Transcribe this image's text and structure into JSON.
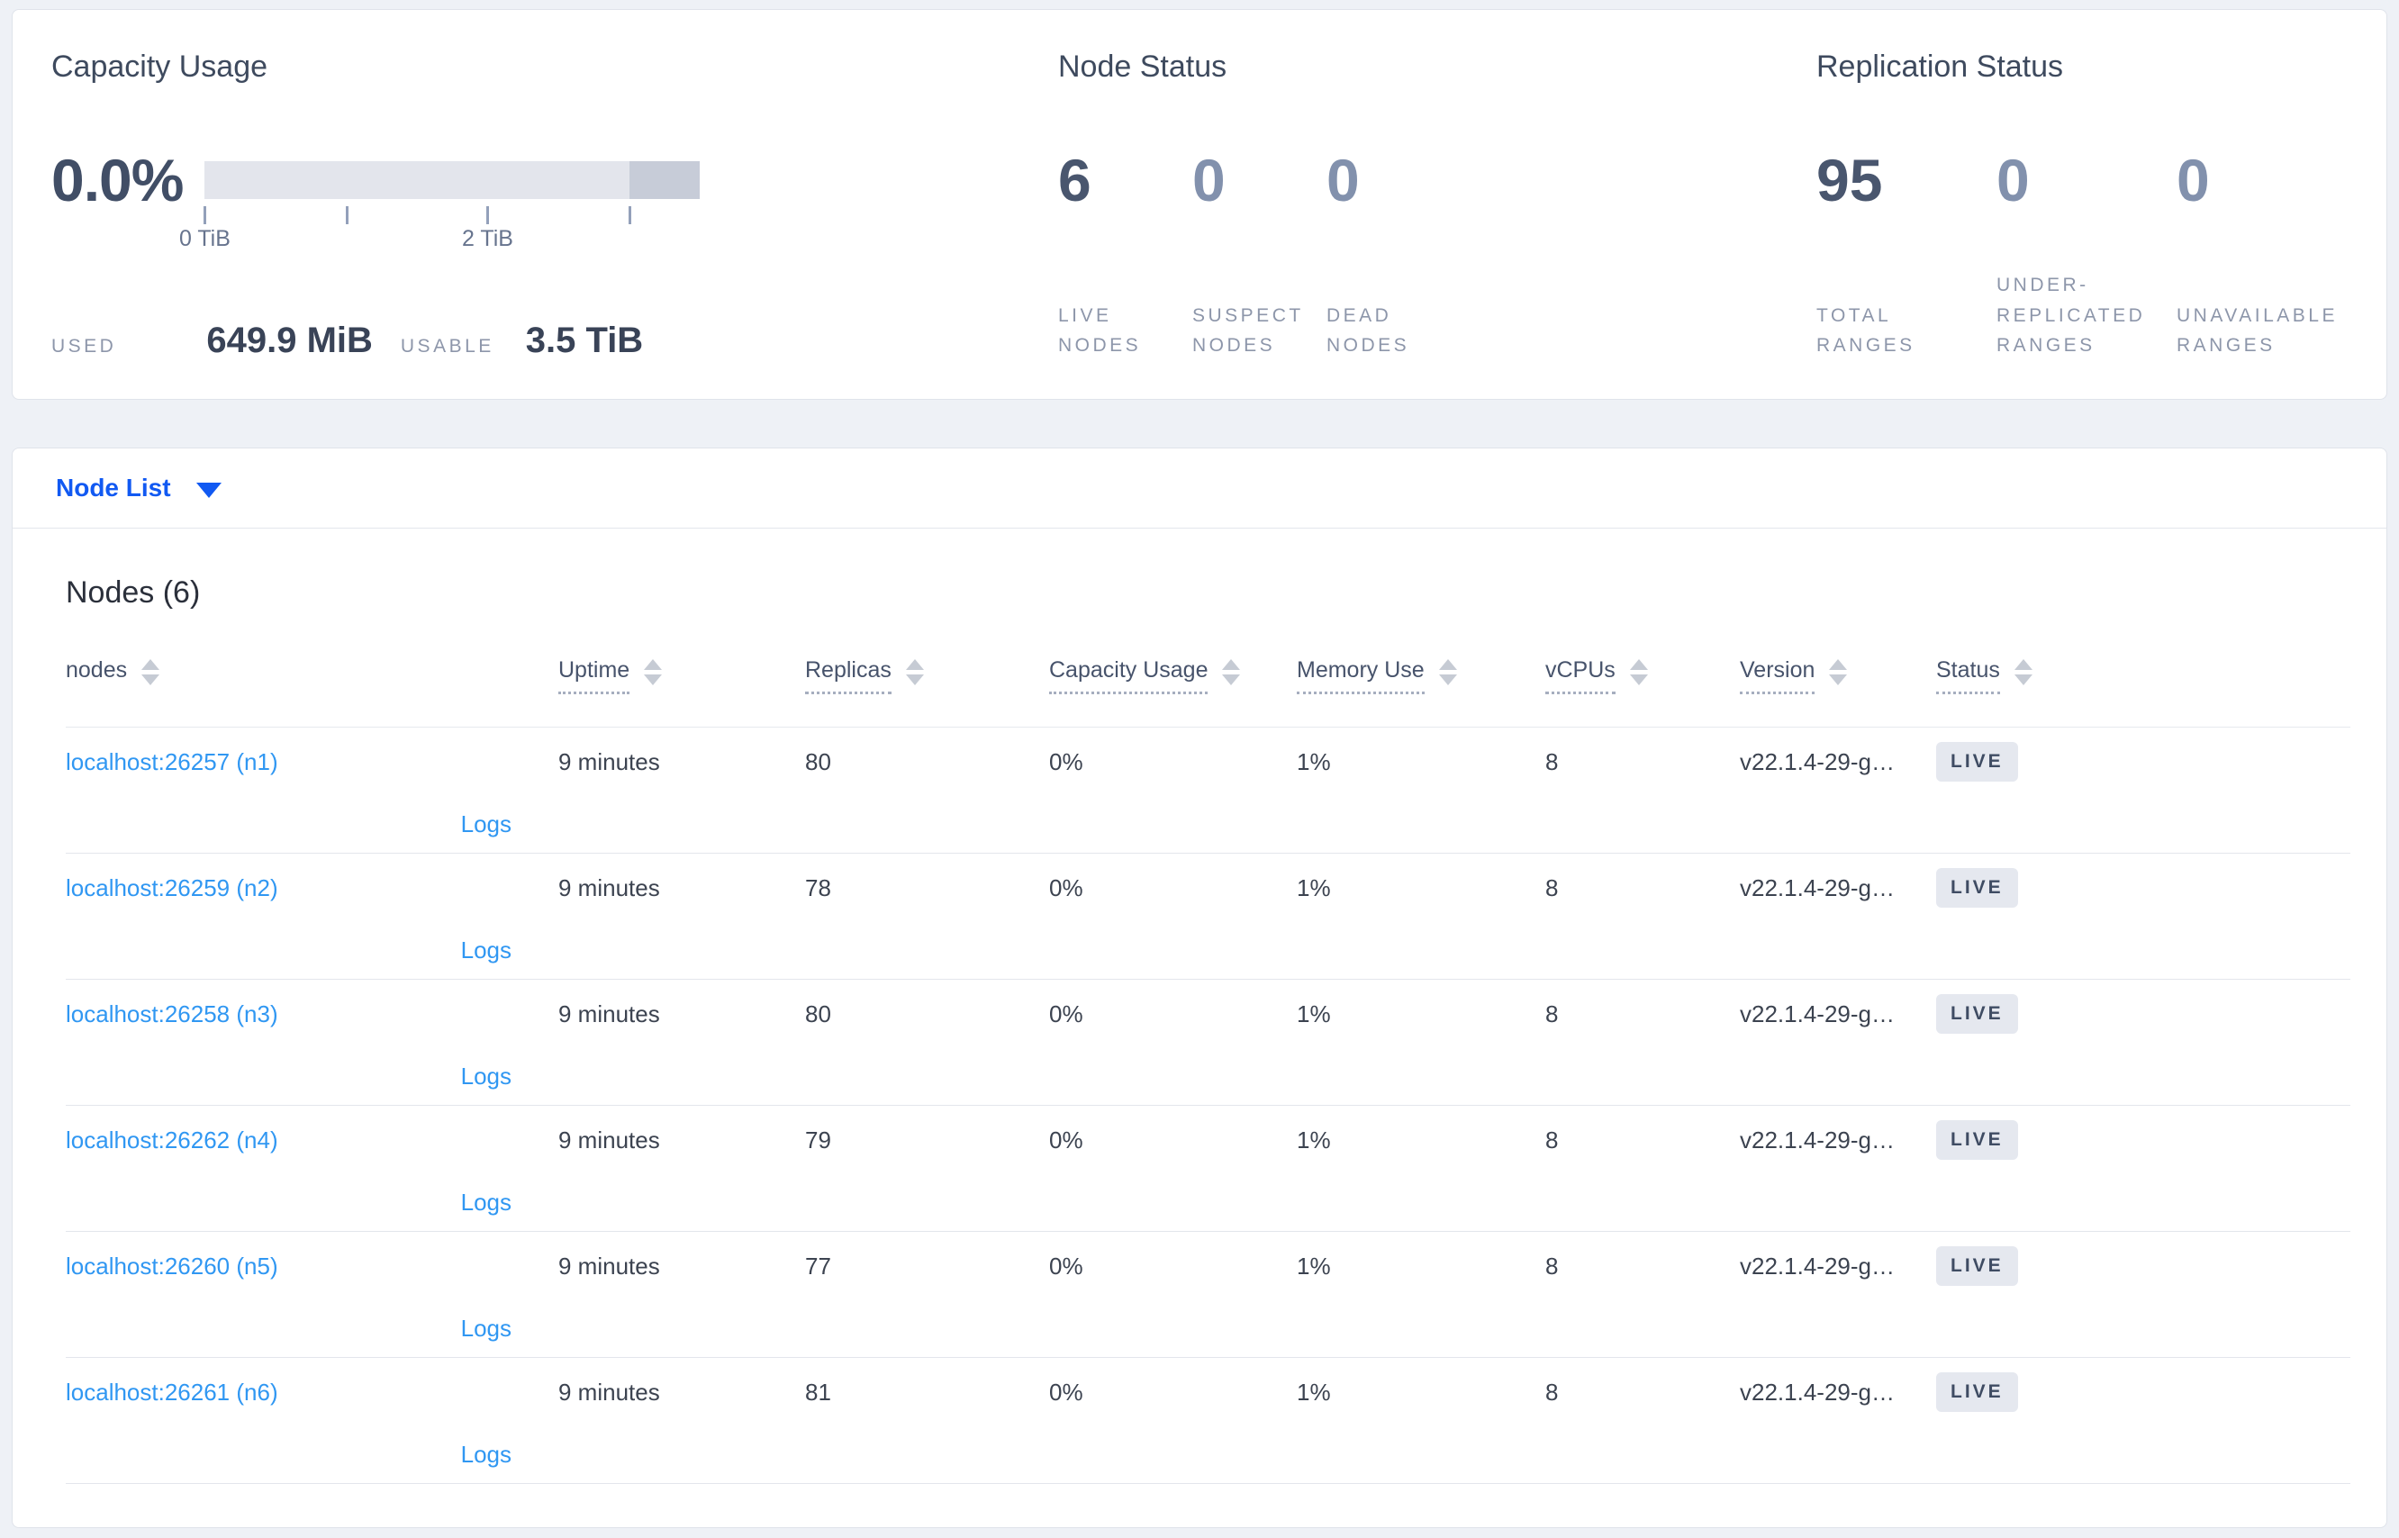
{
  "colors": {
    "accent_blue": "#1159f2",
    "link_blue": "#3097f2",
    "badge_bg": "#e5e8ef",
    "bar_track": "#e3e5ec",
    "bar_dark_segment": "#c7ccd8",
    "page_bg": "#eef1f6"
  },
  "cards": {
    "capacity": {
      "title": "Capacity Usage",
      "percent": "0.0%",
      "gauge": {
        "ticks": [
          {
            "label": "0 TiB",
            "pos_pct": 0
          },
          {
            "label": "",
            "pos_pct": 28.6
          },
          {
            "label": "2 TiB",
            "pos_pct": 57.1
          },
          {
            "label": "",
            "pos_pct": 85.7
          }
        ],
        "dark_segment_start_pct": 85.7
      },
      "used_label": "USED",
      "used_value": "649.9 MiB",
      "usable_label": "USABLE",
      "usable_value": "3.5 TiB"
    },
    "node_status": {
      "title": "Node Status",
      "stats": [
        {
          "value": "6",
          "label": "LIVE NODES",
          "emphasis": true
        },
        {
          "value": "0",
          "label": "SUSPECT NODES",
          "emphasis": false
        },
        {
          "value": "0",
          "label": "DEAD NODES",
          "emphasis": false
        }
      ]
    },
    "replication": {
      "title": "Replication Status",
      "stats": [
        {
          "value": "95",
          "label": "TOTAL RANGES",
          "emphasis": true
        },
        {
          "value": "0",
          "label": "UNDER-REPLICATED RANGES",
          "emphasis": false
        },
        {
          "value": "0",
          "label": "UNAVAILABLE RANGES",
          "emphasis": false
        }
      ]
    }
  },
  "view_selector": {
    "label": "Node List"
  },
  "table": {
    "title": "Nodes (6)",
    "columns": [
      {
        "label": "nodes",
        "underline": false
      },
      {
        "label": "Uptime",
        "underline": true
      },
      {
        "label": "Replicas",
        "underline": true
      },
      {
        "label": "Capacity Usage",
        "underline": true
      },
      {
        "label": "Memory Use",
        "underline": true
      },
      {
        "label": "vCPUs",
        "underline": true
      },
      {
        "label": "Version",
        "underline": true
      },
      {
        "label": "Status",
        "underline": true
      }
    ],
    "rows": [
      {
        "node": "localhost:26257 (n1)",
        "uptime": "9 minutes",
        "replicas": "80",
        "capacity": "0%",
        "memory": "1%",
        "vcpus": "8",
        "version": "v22.1.4-29-g…",
        "status": "LIVE",
        "logs": "Logs"
      },
      {
        "node": "localhost:26259 (n2)",
        "uptime": "9 minutes",
        "replicas": "78",
        "capacity": "0%",
        "memory": "1%",
        "vcpus": "8",
        "version": "v22.1.4-29-g…",
        "status": "LIVE",
        "logs": "Logs"
      },
      {
        "node": "localhost:26258 (n3)",
        "uptime": "9 minutes",
        "replicas": "80",
        "capacity": "0%",
        "memory": "1%",
        "vcpus": "8",
        "version": "v22.1.4-29-g…",
        "status": "LIVE",
        "logs": "Logs"
      },
      {
        "node": "localhost:26262 (n4)",
        "uptime": "9 minutes",
        "replicas": "79",
        "capacity": "0%",
        "memory": "1%",
        "vcpus": "8",
        "version": "v22.1.4-29-g…",
        "status": "LIVE",
        "logs": "Logs"
      },
      {
        "node": "localhost:26260 (n5)",
        "uptime": "9 minutes",
        "replicas": "77",
        "capacity": "0%",
        "memory": "1%",
        "vcpus": "8",
        "version": "v22.1.4-29-g…",
        "status": "LIVE",
        "logs": "Logs"
      },
      {
        "node": "localhost:26261 (n6)",
        "uptime": "9 minutes",
        "replicas": "81",
        "capacity": "0%",
        "memory": "1%",
        "vcpus": "8",
        "version": "v22.1.4-29-g…",
        "status": "LIVE",
        "logs": "Logs"
      }
    ]
  }
}
